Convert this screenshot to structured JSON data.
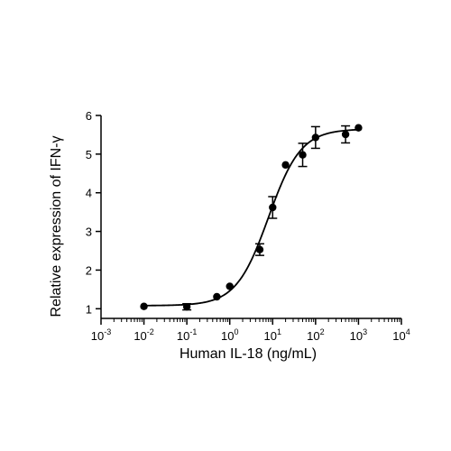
{
  "chart_data": {
    "type": "scatter",
    "title": "",
    "xlabel": "Human IL-18 (ng/mL)",
    "ylabel": "Relative expression of IFN-γ",
    "x_scale": "log",
    "xlim": [
      0.001,
      10000
    ],
    "ylim": [
      0.75,
      6
    ],
    "x_ticks": [
      {
        "base": "10",
        "exp": "-3"
      },
      {
        "base": "10",
        "exp": "-2"
      },
      {
        "base": "10",
        "exp": "-1"
      },
      {
        "base": "10",
        "exp": "0"
      },
      {
        "base": "10",
        "exp": "1"
      },
      {
        "base": "10",
        "exp": "2"
      },
      {
        "base": "10",
        "exp": "3"
      },
      {
        "base": "10",
        "exp": "4"
      }
    ],
    "y_ticks": [
      "1",
      "2",
      "3",
      "4",
      "5",
      "6"
    ],
    "grid": false,
    "legend": "none",
    "series": [
      {
        "points": [
          {
            "x": 0.01,
            "y": 1.06,
            "err": 0
          },
          {
            "x": 0.1,
            "y": 1.05,
            "err": 0.08
          },
          {
            "x": 0.5,
            "y": 1.31,
            "err": 0
          },
          {
            "x": 1,
            "y": 1.58,
            "err": 0
          },
          {
            "x": 5,
            "y": 2.53,
            "err": 0.15
          },
          {
            "x": 10,
            "y": 3.62,
            "err": 0.28
          },
          {
            "x": 20,
            "y": 4.72,
            "err": 0
          },
          {
            "x": 50,
            "y": 4.98,
            "err": 0.3
          },
          {
            "x": 100,
            "y": 5.43,
            "err": 0.28
          },
          {
            "x": 500,
            "y": 5.51,
            "err": 0.22
          },
          {
            "x": 1000,
            "y": 5.68,
            "err": 0
          }
        ],
        "fit_curve": {
          "model": "4PL",
          "bottom": 1.08,
          "top": 5.65,
          "ec50": 8,
          "hill": 1.15
        }
      }
    ],
    "colors": {
      "marker": "#000000",
      "line": "#000000"
    }
  }
}
